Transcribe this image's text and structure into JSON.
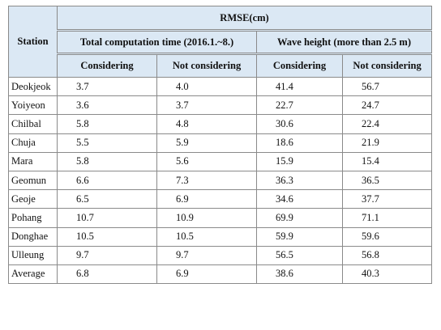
{
  "table": {
    "station_header": "Station",
    "rmse_header": "RMSE(cm)",
    "group_headers": [
      "Total computation time (2016.1.~8.)",
      "Wave height (more than 2.5 m)"
    ],
    "sub_headers": [
      "Considering",
      "Not considering",
      "Considering",
      "Not considering"
    ],
    "rows": [
      {
        "station": "Deokjeok",
        "v1": "3.7",
        "v2": "4.0",
        "v3": "41.4",
        "v4": "56.7"
      },
      {
        "station": "Yoiyeon",
        "v1": "3.6",
        "v2": "3.7",
        "v3": "22.7",
        "v4": "24.7"
      },
      {
        "station": "Chilbal",
        "v1": "5.8",
        "v2": "4.8",
        "v3": "30.6",
        "v4": "22.4"
      },
      {
        "station": "Chuja",
        "v1": "5.5",
        "v2": "5.9",
        "v3": "18.6",
        "v4": "21.9"
      },
      {
        "station": "Mara",
        "v1": "5.8",
        "v2": "5.6",
        "v3": "15.9",
        "v4": "15.4"
      },
      {
        "station": "Geomun",
        "v1": "6.6",
        "v2": "7.3",
        "v3": "36.3",
        "v4": "36.5"
      },
      {
        "station": "Geoje",
        "v1": "6.5",
        "v2": "6.9",
        "v3": "34.6",
        "v4": "37.7"
      },
      {
        "station": "Pohang",
        "v1": "10.7",
        "v2": "10.9",
        "v3": "69.9",
        "v4": "71.1"
      },
      {
        "station": "Donghae",
        "v1": "10.5",
        "v2": "10.5",
        "v3": "59.9",
        "v4": "59.6"
      },
      {
        "station": "Ulleung",
        "v1": "9.7",
        "v2": "9.7",
        "v3": "56.5",
        "v4": "56.8"
      },
      {
        "station": "Average",
        "v1": "6.8",
        "v2": "6.9",
        "v3": "38.6",
        "v4": "40.3"
      }
    ]
  }
}
